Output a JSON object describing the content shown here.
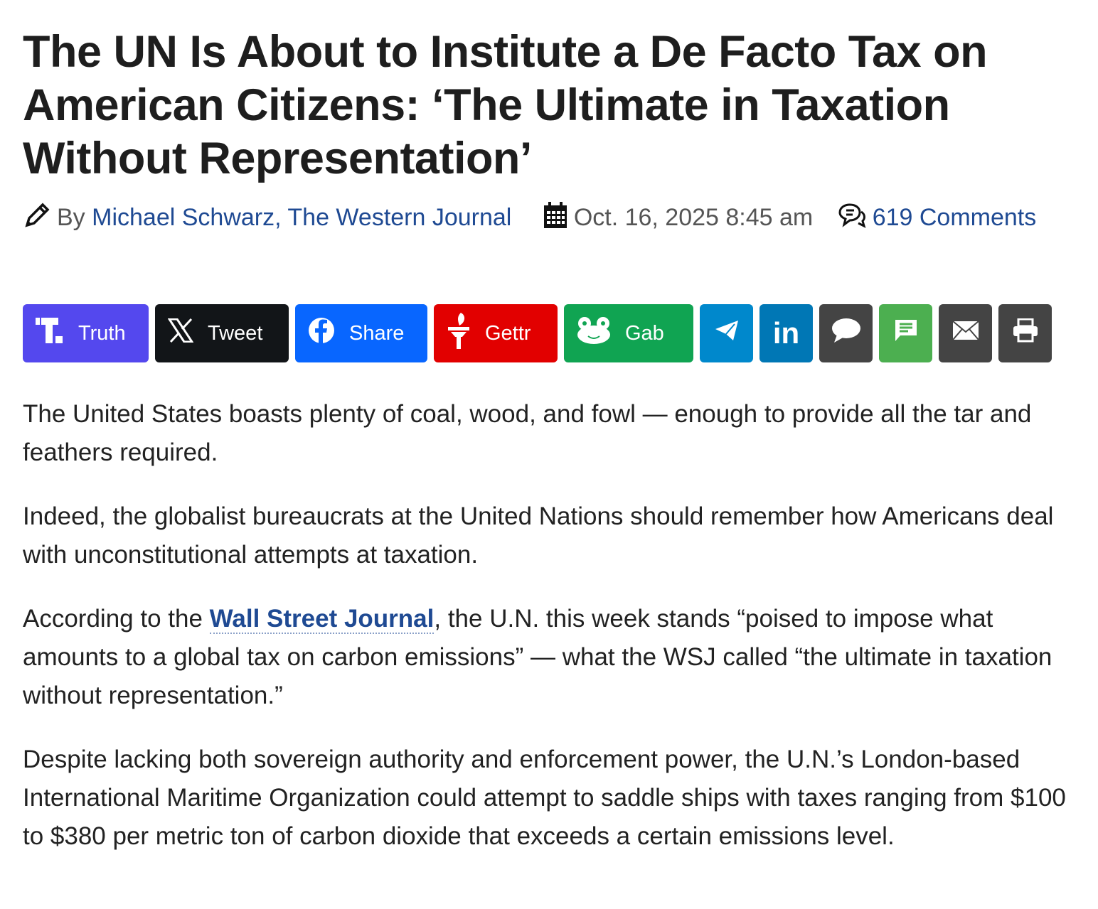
{
  "article": {
    "title": "The UN Is About to Institute a De Facto Tax on American Citizens: ‘The Ultimate in Taxation Without Representation’",
    "byline_prefix": "By",
    "author": "Michael Schwarz, The Western Journal",
    "date": "Oct. 16, 2025 8:45 am",
    "comments": "619 Comments"
  },
  "share": [
    {
      "label": "Truth",
      "color": "#5448ee",
      "icon": "truth-social-icon"
    },
    {
      "label": "Tweet",
      "color": "#121518",
      "icon": "x-icon"
    },
    {
      "label": "Share",
      "color": "#0866ff",
      "icon": "facebook-icon"
    },
    {
      "label": "Gettr",
      "color": "#e20000",
      "icon": "gettr-torch-icon"
    },
    {
      "label": "Gab",
      "color": "#10a452",
      "icon": "gab-frog-icon"
    },
    {
      "label": "",
      "color": "#0088cc",
      "icon": "telegram-icon"
    },
    {
      "label": "",
      "color": "#0077b5",
      "icon": "linkedin-icon"
    },
    {
      "label": "",
      "color": "#444444",
      "icon": "speech-bubble-icon"
    },
    {
      "label": "",
      "color": "#4caf50",
      "icon": "sms-icon"
    },
    {
      "label": "",
      "color": "#444444",
      "icon": "email-icon"
    },
    {
      "label": "",
      "color": "#444444",
      "icon": "print-icon"
    }
  ],
  "paragraphs": {
    "p1": "The United States boasts plenty of coal, wood, and fowl — enough to provide all the tar and feathers required.",
    "p2": "Indeed, the globalist bureaucrats at the United Nations should remember how Americans deal with unconstitutional attempts at taxation.",
    "p3_before": "According to the ",
    "p3_link": "Wall Street Journal",
    "p3_after": ", the U.N. this week stands “poised to impose what amounts to a global tax on carbon emissions” — what the WSJ called “the ultimate in taxation without representation.”",
    "p4": "Despite lacking both sovereign authority and enforcement power, the U.N.’s London-based International Maritime Organization could attempt to saddle ships with taxes ranging from $100 to $380 per metric ton of carbon dioxide that exceeds a certain emissions level."
  }
}
